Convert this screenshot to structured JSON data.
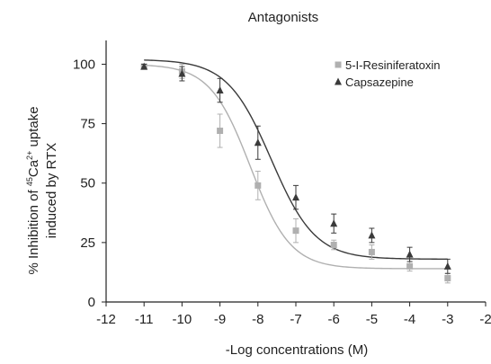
{
  "chart_data": {
    "type": "scatter",
    "title": "Antagonists",
    "xlabel": "-Log concentrations (M)",
    "ylabel_parts": {
      "pre": "% Inhibition of ",
      "superscript1": "45",
      "mid": "Ca",
      "superscript2": "2+",
      "post": " uptake",
      "line2": "induced by RTX"
    },
    "xlim": [
      -12,
      -2
    ],
    "ylim": [
      0,
      110
    ],
    "x_ticks": [
      "-12",
      "-11",
      "-10",
      "-9",
      "-8",
      "-7",
      "-6",
      "-5",
      "-4",
      "-3",
      "-2"
    ],
    "y_ticks": [
      "0",
      "25",
      "50",
      "75",
      "100"
    ],
    "grid": false,
    "legend_position": "top-right",
    "series": [
      {
        "name": "5-I-Resiniferatoxin",
        "marker": "square",
        "color": "#b0b0b0",
        "x": [
          -11,
          -10,
          -9,
          -8,
          -7,
          -6,
          -5,
          -4,
          -3
        ],
        "y": [
          99,
          97,
          72,
          49,
          30,
          24,
          21,
          15,
          10
        ],
        "error": [
          1,
          3,
          7,
          6,
          5,
          2,
          3,
          2,
          2
        ],
        "fit": {
          "top": 100,
          "bottom": 14,
          "log_ic50": -8.2,
          "hill": 0.82
        }
      },
      {
        "name": "Capsazepine",
        "marker": "triangle",
        "color": "#3a3a3a",
        "x": [
          -11,
          -10,
          -9,
          -8,
          -7,
          -6,
          -5,
          -4,
          -3
        ],
        "y": [
          99,
          96,
          89,
          67,
          44,
          33,
          28,
          20,
          15
        ],
        "error": [
          1,
          3,
          5,
          7,
          5,
          4,
          3,
          3,
          3
        ],
        "fit": {
          "top": 102,
          "bottom": 18,
          "log_ic50": -7.65,
          "hill": 0.75
        }
      }
    ]
  }
}
